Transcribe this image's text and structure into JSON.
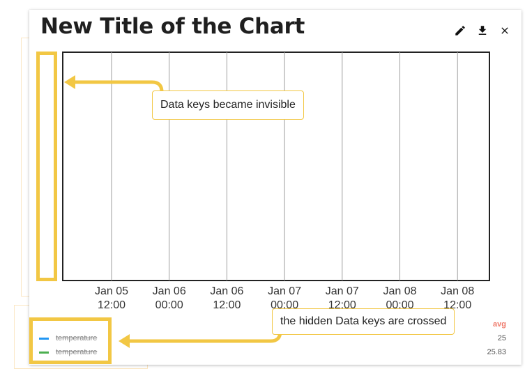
{
  "chart": {
    "title": "New Title of the Chart",
    "toolbar": {
      "edit_icon": "pencil-icon",
      "download_icon": "download-icon",
      "close_icon": "close-icon"
    }
  },
  "chart_data": {
    "type": "line",
    "title": "New Title of the Chart",
    "x_ticks": [
      [
        "Jan 05",
        "12:00"
      ],
      [
        "Jan 06",
        "00:00"
      ],
      [
        "Jan 06",
        "12:00"
      ],
      [
        "Jan 07",
        "00:00"
      ],
      [
        "Jan 07",
        "12:00"
      ],
      [
        "Jan 08",
        "00:00"
      ],
      [
        "Jan 08",
        "12:00"
      ]
    ],
    "grid": "vertical",
    "series": [
      {
        "name": "temperature",
        "color": "#2196f3",
        "hidden": true,
        "avg": "25"
      },
      {
        "name": "temperature",
        "color": "#4caf50",
        "hidden": true,
        "avg": "25.83"
      }
    ],
    "stat_header": "avg",
    "legend_placement": "bottom-left"
  },
  "annotations": {
    "callout_top": "Data keys became invisible",
    "callout_bottom": "the hidden Data keys are crossed",
    "accent": "#f2c744"
  }
}
